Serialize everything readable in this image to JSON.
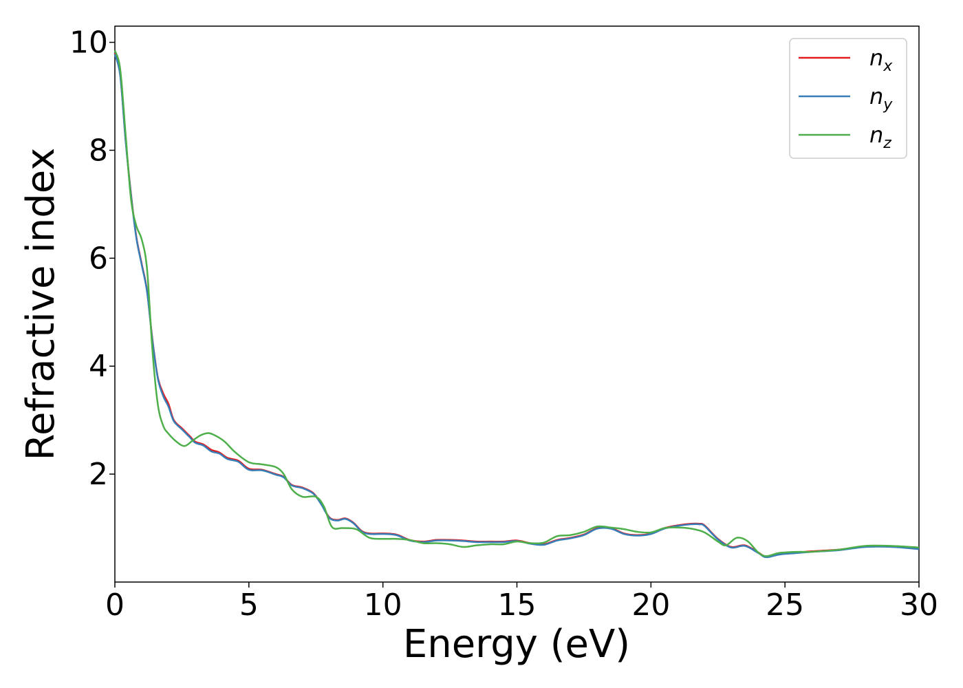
{
  "chart_data": {
    "type": "line",
    "title": "",
    "xlabel": "Energy (eV)",
    "ylabel": "Refractive index",
    "xlim": [
      0,
      30
    ],
    "ylim": [
      0,
      10.3
    ],
    "xticks": [
      0,
      5,
      10,
      15,
      20,
      25,
      30
    ],
    "yticks": [
      2,
      4,
      6,
      8,
      10
    ],
    "grid": false,
    "legend": {
      "placement": "top-right",
      "entries": [
        {
          "base": "n",
          "sub": "x"
        },
        {
          "base": "n",
          "sub": "y"
        },
        {
          "base": "n",
          "sub": "z"
        }
      ]
    },
    "series": [
      {
        "name": "n_x",
        "color": "#e41a1c",
        "points": [
          [
            0,
            9.8
          ],
          [
            0.2,
            9.4
          ],
          [
            0.4,
            8.2
          ],
          [
            0.6,
            7.2
          ],
          [
            0.8,
            6.4
          ],
          [
            1.0,
            5.9
          ],
          [
            1.2,
            5.4
          ],
          [
            1.4,
            4.5
          ],
          [
            1.6,
            3.8
          ],
          [
            1.8,
            3.5
          ],
          [
            2.0,
            3.3
          ],
          [
            2.2,
            3.0
          ],
          [
            2.5,
            2.85
          ],
          [
            2.8,
            2.7
          ],
          [
            3.0,
            2.6
          ],
          [
            3.3,
            2.55
          ],
          [
            3.6,
            2.45
          ],
          [
            3.9,
            2.4
          ],
          [
            4.2,
            2.3
          ],
          [
            4.6,
            2.25
          ],
          [
            5.0,
            2.1
          ],
          [
            5.5,
            2.08
          ],
          [
            6.0,
            2.0
          ],
          [
            6.3,
            1.95
          ],
          [
            6.6,
            1.8
          ],
          [
            7.0,
            1.75
          ],
          [
            7.4,
            1.65
          ],
          [
            7.7,
            1.45
          ],
          [
            8.0,
            1.2
          ],
          [
            8.3,
            1.15
          ],
          [
            8.6,
            1.18
          ],
          [
            8.9,
            1.1
          ],
          [
            9.2,
            0.95
          ],
          [
            9.5,
            0.9
          ],
          [
            10.0,
            0.9
          ],
          [
            10.5,
            0.88
          ],
          [
            11.0,
            0.78
          ],
          [
            11.5,
            0.75
          ],
          [
            12.0,
            0.78
          ],
          [
            12.5,
            0.78
          ],
          [
            13.0,
            0.77
          ],
          [
            13.5,
            0.75
          ],
          [
            14.0,
            0.75
          ],
          [
            14.5,
            0.75
          ],
          [
            15.0,
            0.77
          ],
          [
            15.5,
            0.72
          ],
          [
            16.0,
            0.7
          ],
          [
            16.5,
            0.78
          ],
          [
            17.0,
            0.82
          ],
          [
            17.5,
            0.88
          ],
          [
            18.0,
            1.0
          ],
          [
            18.5,
            1.0
          ],
          [
            19.0,
            0.9
          ],
          [
            19.5,
            0.87
          ],
          [
            20.0,
            0.9
          ],
          [
            20.5,
            1.0
          ],
          [
            21.0,
            1.05
          ],
          [
            21.5,
            1.08
          ],
          [
            21.8,
            1.08
          ],
          [
            22.0,
            1.05
          ],
          [
            22.5,
            0.8
          ],
          [
            23.0,
            0.65
          ],
          [
            23.5,
            0.68
          ],
          [
            24.0,
            0.55
          ],
          [
            24.3,
            0.47
          ],
          [
            24.8,
            0.52
          ],
          [
            25.5,
            0.55
          ],
          [
            26.0,
            0.57
          ],
          [
            27.0,
            0.6
          ],
          [
            28.0,
            0.66
          ],
          [
            29.0,
            0.66
          ],
          [
            30.0,
            0.62
          ]
        ]
      },
      {
        "name": "n_y",
        "color": "#377eb8",
        "points": [
          [
            0,
            9.78
          ],
          [
            0.2,
            9.38
          ],
          [
            0.4,
            8.18
          ],
          [
            0.6,
            7.18
          ],
          [
            0.8,
            6.38
          ],
          [
            1.0,
            5.88
          ],
          [
            1.2,
            5.38
          ],
          [
            1.4,
            4.48
          ],
          [
            1.6,
            3.78
          ],
          [
            1.8,
            3.45
          ],
          [
            2.0,
            3.25
          ],
          [
            2.2,
            2.98
          ],
          [
            2.5,
            2.83
          ],
          [
            2.8,
            2.68
          ],
          [
            3.0,
            2.58
          ],
          [
            3.3,
            2.53
          ],
          [
            3.6,
            2.42
          ],
          [
            3.9,
            2.38
          ],
          [
            4.2,
            2.28
          ],
          [
            4.6,
            2.23
          ],
          [
            5.0,
            2.08
          ],
          [
            5.5,
            2.07
          ],
          [
            6.0,
            1.99
          ],
          [
            6.3,
            1.94
          ],
          [
            6.6,
            1.79
          ],
          [
            7.0,
            1.74
          ],
          [
            7.4,
            1.64
          ],
          [
            7.7,
            1.44
          ],
          [
            8.0,
            1.19
          ],
          [
            8.3,
            1.14
          ],
          [
            8.6,
            1.17
          ],
          [
            8.9,
            1.09
          ],
          [
            9.2,
            0.94
          ],
          [
            9.5,
            0.89
          ],
          [
            10.0,
            0.89
          ],
          [
            10.5,
            0.87
          ],
          [
            11.0,
            0.77
          ],
          [
            11.5,
            0.74
          ],
          [
            12.0,
            0.77
          ],
          [
            12.5,
            0.77
          ],
          [
            13.0,
            0.76
          ],
          [
            13.5,
            0.74
          ],
          [
            14.0,
            0.74
          ],
          [
            14.5,
            0.74
          ],
          [
            15.0,
            0.76
          ],
          [
            15.5,
            0.71
          ],
          [
            16.0,
            0.69
          ],
          [
            16.5,
            0.77
          ],
          [
            17.0,
            0.81
          ],
          [
            17.5,
            0.87
          ],
          [
            18.0,
            0.99
          ],
          [
            18.5,
            0.99
          ],
          [
            19.0,
            0.89
          ],
          [
            19.5,
            0.86
          ],
          [
            20.0,
            0.89
          ],
          [
            20.5,
            0.99
          ],
          [
            21.0,
            1.04
          ],
          [
            21.5,
            1.07
          ],
          [
            21.8,
            1.07
          ],
          [
            22.0,
            1.04
          ],
          [
            22.5,
            0.79
          ],
          [
            23.0,
            0.64
          ],
          [
            23.5,
            0.67
          ],
          [
            24.0,
            0.54
          ],
          [
            24.3,
            0.46
          ],
          [
            24.8,
            0.51
          ],
          [
            25.5,
            0.54
          ],
          [
            26.0,
            0.56
          ],
          [
            27.0,
            0.59
          ],
          [
            28.0,
            0.65
          ],
          [
            29.0,
            0.65
          ],
          [
            30.0,
            0.61
          ]
        ]
      },
      {
        "name": "n_z",
        "color": "#4daf4a",
        "points": [
          [
            0,
            9.85
          ],
          [
            0.2,
            9.5
          ],
          [
            0.4,
            8.3
          ],
          [
            0.6,
            7.1
          ],
          [
            0.8,
            6.6
          ],
          [
            1.0,
            6.35
          ],
          [
            1.2,
            5.8
          ],
          [
            1.4,
            4.3
          ],
          [
            1.6,
            3.3
          ],
          [
            1.8,
            2.9
          ],
          [
            2.0,
            2.75
          ],
          [
            2.3,
            2.6
          ],
          [
            2.6,
            2.52
          ],
          [
            2.9,
            2.62
          ],
          [
            3.2,
            2.72
          ],
          [
            3.5,
            2.76
          ],
          [
            3.8,
            2.7
          ],
          [
            4.1,
            2.6
          ],
          [
            4.5,
            2.4
          ],
          [
            5.0,
            2.22
          ],
          [
            5.5,
            2.18
          ],
          [
            6.0,
            2.13
          ],
          [
            6.3,
            2.0
          ],
          [
            6.6,
            1.72
          ],
          [
            7.0,
            1.58
          ],
          [
            7.5,
            1.58
          ],
          [
            7.8,
            1.4
          ],
          [
            8.1,
            1.02
          ],
          [
            8.5,
            1.0
          ],
          [
            9.0,
            0.98
          ],
          [
            9.5,
            0.82
          ],
          [
            10.0,
            0.8
          ],
          [
            10.5,
            0.8
          ],
          [
            11.0,
            0.78
          ],
          [
            11.5,
            0.72
          ],
          [
            12.0,
            0.72
          ],
          [
            12.5,
            0.7
          ],
          [
            13.0,
            0.65
          ],
          [
            13.5,
            0.68
          ],
          [
            14.0,
            0.7
          ],
          [
            14.5,
            0.7
          ],
          [
            15.0,
            0.75
          ],
          [
            15.5,
            0.72
          ],
          [
            16.0,
            0.73
          ],
          [
            16.5,
            0.85
          ],
          [
            17.0,
            0.87
          ],
          [
            17.5,
            0.93
          ],
          [
            18.0,
            1.03
          ],
          [
            18.5,
            1.01
          ],
          [
            19.0,
            0.98
          ],
          [
            19.5,
            0.93
          ],
          [
            20.0,
            0.92
          ],
          [
            20.5,
            1.0
          ],
          [
            21.0,
            1.01
          ],
          [
            21.5,
            0.99
          ],
          [
            22.0,
            0.92
          ],
          [
            22.5,
            0.75
          ],
          [
            22.8,
            0.68
          ],
          [
            23.2,
            0.82
          ],
          [
            23.6,
            0.76
          ],
          [
            24.0,
            0.55
          ],
          [
            24.3,
            0.48
          ],
          [
            24.8,
            0.54
          ],
          [
            25.5,
            0.56
          ],
          [
            26.0,
            0.56
          ],
          [
            27.0,
            0.6
          ],
          [
            28.0,
            0.67
          ],
          [
            29.0,
            0.67
          ],
          [
            30.0,
            0.64
          ]
        ]
      }
    ]
  }
}
